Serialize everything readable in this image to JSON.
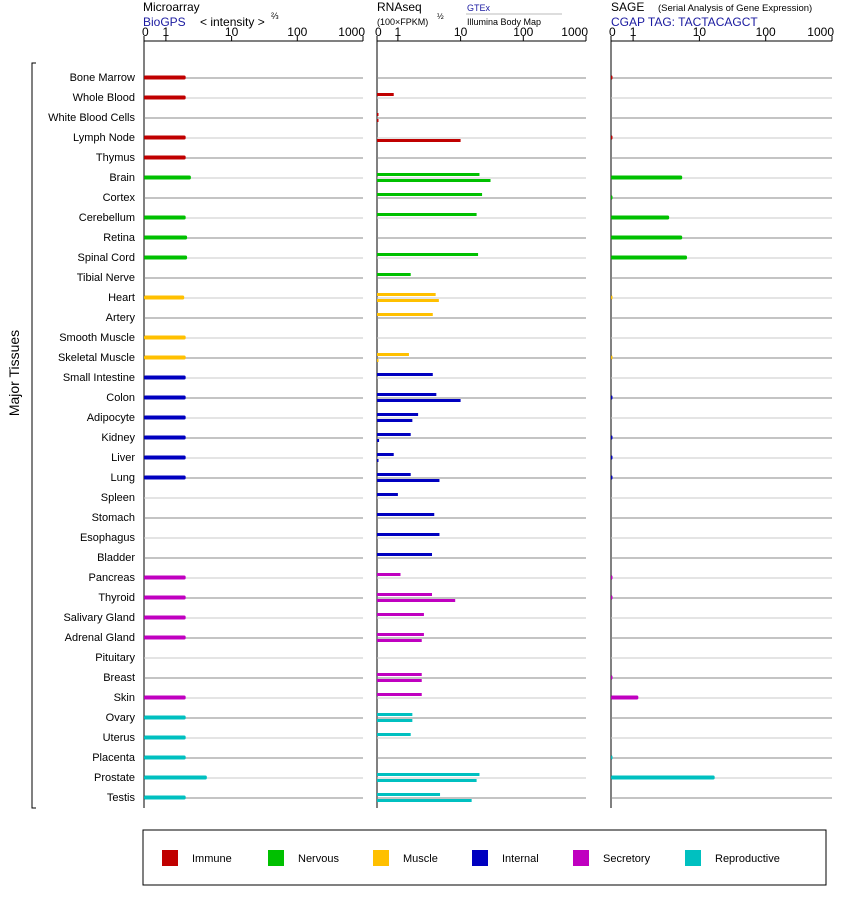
{
  "panels": {
    "microarray": {
      "title": "Microarray",
      "subtitle": "BioGPS",
      "scale_label": "< intensity >",
      "scale_exp": "⅔",
      "ticks": [
        "0",
        "1",
        "10",
        "100",
        "1000"
      ]
    },
    "rnaseq": {
      "title": "RNAseq",
      "units": "(100×FPKM)",
      "units_exp": "½",
      "legend_gtex": "GTEx",
      "legend_ibm": "Illumina Body Map",
      "ticks": [
        "0",
        "1",
        "10",
        "100",
        "1000"
      ]
    },
    "sage": {
      "title": "SAGE",
      "subtitle": "(Serial Analysis of Gene Expression)",
      "tag": "CGAP TAG: TACTACAGCT",
      "ticks": [
        "0",
        "1",
        "10",
        "100",
        "1000"
      ]
    }
  },
  "y_group_label": "Major Tissues",
  "legend": [
    {
      "name": "Immune",
      "color": "#c00000"
    },
    {
      "name": "Nervous",
      "color": "#00c000"
    },
    {
      "name": "Muscle",
      "color": "#ffc000"
    },
    {
      "name": "Internal",
      "color": "#0000c0"
    },
    {
      "name": "Secretory",
      "color": "#c000c0"
    },
    {
      "name": "Reproductive",
      "color": "#00c0c0"
    }
  ],
  "chart_data": [
    {
      "type": "bar",
      "title": "Microarray",
      "scale": "log-like (0, 1, 10, 100, 1000)",
      "xlim": [
        0,
        1000
      ],
      "categories": [
        "Bone Marrow",
        "Whole Blood",
        "White Blood Cells",
        "Lymph Node",
        "Thymus",
        "Brain",
        "Cortex",
        "Cerebellum",
        "Retina",
        "Spinal Cord",
        "Tibial Nerve",
        "Heart",
        "Artery",
        "Smooth Muscle",
        "Skeletal Muscle",
        "Small Intestine",
        "Colon",
        "Adipocyte",
        "Kidney",
        "Liver",
        "Lung",
        "Spleen",
        "Stomach",
        "Esophagus",
        "Bladder",
        "Pancreas",
        "Thyroid",
        "Salivary Gland",
        "Adrenal Gland",
        "Pituitary",
        "Breast",
        "Skin",
        "Ovary",
        "Uterus",
        "Placenta",
        "Prostate",
        "Testis"
      ],
      "groups": [
        "Immune",
        "Immune",
        "Immune",
        "Immune",
        "Immune",
        "Nervous",
        "Nervous",
        "Nervous",
        "Nervous",
        "Nervous",
        "Nervous",
        "Muscle",
        "Muscle",
        "Muscle",
        "Muscle",
        "Internal",
        "Internal",
        "Internal",
        "Internal",
        "Internal",
        "Internal",
        "Internal",
        "Internal",
        "Internal",
        "Internal",
        "Secretory",
        "Secretory",
        "Secretory",
        "Secretory",
        "Secretory",
        "Secretory",
        "Secretory",
        "Reproductive",
        "Reproductive",
        "Reproductive",
        "Reproductive",
        "Reproductive"
      ],
      "values": [
        2.0,
        2.0,
        null,
        2.0,
        2.0,
        2.4,
        null,
        2.0,
        2.1,
        2.1,
        null,
        1.9,
        null,
        2.0,
        2.0,
        2.0,
        2.0,
        2.0,
        2.0,
        2.0,
        2.0,
        null,
        null,
        null,
        null,
        2.0,
        2.0,
        2.0,
        2.0,
        null,
        null,
        2.0,
        2.0,
        2.0,
        2.0,
        4.2,
        2.0
      ]
    },
    {
      "type": "bar",
      "title": "RNAseq",
      "scale": "log-like (0, 1, 10, 100, 1000)",
      "xlim": [
        0,
        1000
      ],
      "categories": [
        "Bone Marrow",
        "Whole Blood",
        "White Blood Cells",
        "Lymph Node",
        "Thymus",
        "Brain",
        "Cortex",
        "Cerebellum",
        "Retina",
        "Spinal Cord",
        "Tibial Nerve",
        "Heart",
        "Artery",
        "Smooth Muscle",
        "Skeletal Muscle",
        "Small Intestine",
        "Colon",
        "Adipocyte",
        "Kidney",
        "Liver",
        "Lung",
        "Spleen",
        "Stomach",
        "Esophagus",
        "Bladder",
        "Pancreas",
        "Thyroid",
        "Salivary Gland",
        "Adrenal Gland",
        "Pituitary",
        "Breast",
        "Skin",
        "Ovary",
        "Uterus",
        "Placenta",
        "Prostate",
        "Testis"
      ],
      "series": [
        {
          "name": "GTEx",
          "values": [
            null,
            0.8,
            0.05,
            null,
            null,
            20,
            22,
            18,
            null,
            19,
            1.6,
            4.0,
            3.6,
            null,
            1.5,
            3.6,
            4.1,
            2.1,
            1.6,
            0.8,
            1.6,
            1.0,
            3.8,
            4.6,
            3.5,
            1.1,
            3.5,
            2.6,
            2.6,
            null,
            2.4,
            2.4,
            1.7,
            1.6,
            null,
            20,
            4.7
          ]
        },
        {
          "name": "Illumina Body Map",
          "values": [
            null,
            null,
            0.05,
            10,
            null,
            30,
            null,
            null,
            null,
            null,
            null,
            4.5,
            null,
            null,
            0.05,
            null,
            10,
            1.7,
            0.1,
            0.05,
            4.6,
            null,
            null,
            null,
            null,
            null,
            8.2,
            null,
            2.4,
            null,
            2.4,
            null,
            1.7,
            null,
            null,
            18,
            15
          ]
        }
      ]
    },
    {
      "type": "bar",
      "title": "SAGE",
      "scale": "log-like (0, 1, 10, 100, 1000)",
      "xlim": [
        0,
        1000
      ],
      "categories": [
        "Bone Marrow",
        "Whole Blood",
        "White Blood Cells",
        "Lymph Node",
        "Thymus",
        "Brain",
        "Cortex",
        "Cerebellum",
        "Retina",
        "Spinal Cord",
        "Tibial Nerve",
        "Heart",
        "Artery",
        "Smooth Muscle",
        "Skeletal Muscle",
        "Small Intestine",
        "Colon",
        "Adipocyte",
        "Kidney",
        "Liver",
        "Lung",
        "Spleen",
        "Stomach",
        "Esophagus",
        "Bladder",
        "Pancreas",
        "Thyroid",
        "Salivary Gland",
        "Adrenal Gland",
        "Pituitary",
        "Breast",
        "Skin",
        "Ovary",
        "Uterus",
        "Placenta",
        "Prostate",
        "Testis"
      ],
      "values": [
        0.05,
        null,
        null,
        0.05,
        null,
        5.5,
        0.05,
        3.5,
        5.5,
        6.5,
        null,
        0.02,
        null,
        null,
        0.02,
        null,
        0.05,
        null,
        0.05,
        0.05,
        0.05,
        null,
        null,
        null,
        null,
        0.05,
        0.05,
        null,
        null,
        null,
        0.05,
        1.2,
        null,
        null,
        0.05,
        17,
        null
      ]
    }
  ]
}
